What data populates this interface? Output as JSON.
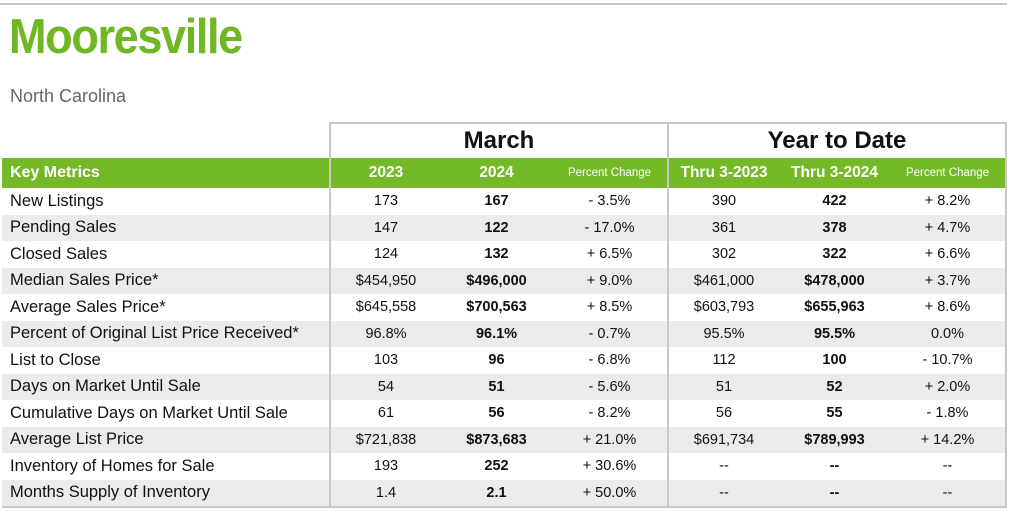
{
  "header": {
    "title": "Mooresville",
    "subtitle": "North Carolina"
  },
  "colors": {
    "accent": "#74b928",
    "title": "#6fb824",
    "row_alt": "#ebebeb",
    "border": "#c8c8c8"
  },
  "groups": {
    "month": "March",
    "ytd": "Year to Date"
  },
  "columns": {
    "metric": "Key Metrics",
    "m_prev": "2023",
    "m_curr": "2024",
    "m_change": "Percent Change",
    "y_prev": "Thru 3-2023",
    "y_curr": "Thru 3-2024",
    "y_change": "Percent Change"
  },
  "rows": [
    {
      "metric": "New Listings",
      "m_prev": "173",
      "m_curr": "167",
      "m_change": "- 3.5%",
      "y_prev": "390",
      "y_curr": "422",
      "y_change": "+ 8.2%"
    },
    {
      "metric": "Pending Sales",
      "m_prev": "147",
      "m_curr": "122",
      "m_change": "- 17.0%",
      "y_prev": "361",
      "y_curr": "378",
      "y_change": "+ 4.7%"
    },
    {
      "metric": "Closed Sales",
      "m_prev": "124",
      "m_curr": "132",
      "m_change": "+ 6.5%",
      "y_prev": "302",
      "y_curr": "322",
      "y_change": "+ 6.6%"
    },
    {
      "metric": "Median Sales Price*",
      "m_prev": "$454,950",
      "m_curr": "$496,000",
      "m_change": "+ 9.0%",
      "y_prev": "$461,000",
      "y_curr": "$478,000",
      "y_change": "+ 3.7%"
    },
    {
      "metric": "Average Sales Price*",
      "m_prev": "$645,558",
      "m_curr": "$700,563",
      "m_change": "+ 8.5%",
      "y_prev": "$603,793",
      "y_curr": "$655,963",
      "y_change": "+ 8.6%"
    },
    {
      "metric": "Percent of Original List Price Received*",
      "m_prev": "96.8%",
      "m_curr": "96.1%",
      "m_change": "- 0.7%",
      "y_prev": "95.5%",
      "y_curr": "95.5%",
      "y_change": "0.0%"
    },
    {
      "metric": "List to Close",
      "m_prev": "103",
      "m_curr": "96",
      "m_change": "- 6.8%",
      "y_prev": "112",
      "y_curr": "100",
      "y_change": "- 10.7%"
    },
    {
      "metric": "Days on Market Until Sale",
      "m_prev": "54",
      "m_curr": "51",
      "m_change": "- 5.6%",
      "y_prev": "51",
      "y_curr": "52",
      "y_change": "+ 2.0%"
    },
    {
      "metric": "Cumulative Days on Market Until Sale",
      "m_prev": "61",
      "m_curr": "56",
      "m_change": "- 8.2%",
      "y_prev": "56",
      "y_curr": "55",
      "y_change": "- 1.8%"
    },
    {
      "metric": "Average List Price",
      "m_prev": "$721,838",
      "m_curr": "$873,683",
      "m_change": "+ 21.0%",
      "y_prev": "$691,734",
      "y_curr": "$789,993",
      "y_change": "+ 14.2%"
    },
    {
      "metric": "Inventory of Homes for Sale",
      "m_prev": "193",
      "m_curr": "252",
      "m_change": "+ 30.6%",
      "y_prev": "--",
      "y_curr": "--",
      "y_change": "--"
    },
    {
      "metric": "Months Supply of Inventory",
      "m_prev": "1.4",
      "m_curr": "2.1",
      "m_change": "+ 50.0%",
      "y_prev": "--",
      "y_curr": "--",
      "y_change": "--"
    }
  ]
}
